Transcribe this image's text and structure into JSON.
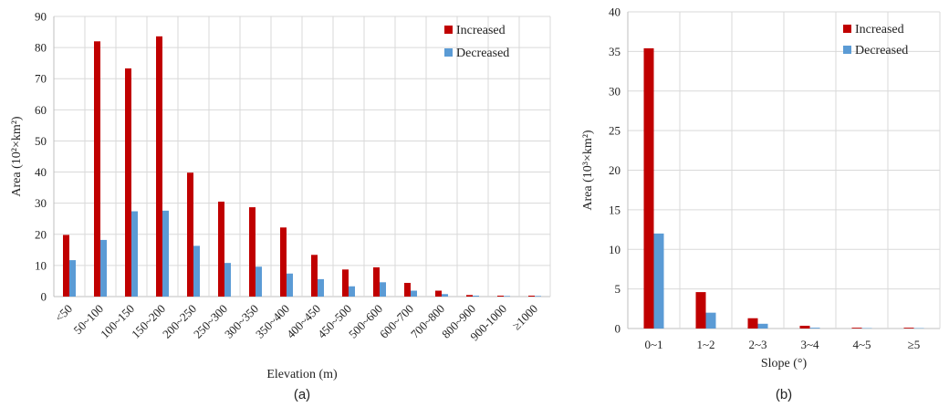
{
  "colors": {
    "increased": "#c00000",
    "decreased": "#5b9bd5"
  },
  "chart_data": [
    {
      "type": "bar",
      "panel_label": "(a)",
      "xlabel": "Elevation (m)",
      "ylabel": "Area (10²×km²)",
      "ylim": [
        0,
        90
      ],
      "yticks": [
        0,
        10,
        20,
        30,
        40,
        50,
        60,
        70,
        80,
        90
      ],
      "categories": [
        "<50",
        "50~100",
        "100~150",
        "150~200",
        "200~250",
        "250~300",
        "300~350",
        "350~400",
        "400~450",
        "450~500",
        "500~600",
        "600~700",
        "700~800",
        "800~900",
        "900-1000",
        "≥1000"
      ],
      "series": [
        {
          "name": "Increased",
          "values": [
            19.8,
            82.0,
            73.3,
            83.6,
            39.8,
            30.5,
            28.7,
            22.2,
            13.4,
            8.7,
            9.4,
            4.4,
            1.9,
            0.5,
            0.3,
            0.3
          ]
        },
        {
          "name": "Decreased",
          "values": [
            11.7,
            18.2,
            27.4,
            27.6,
            16.3,
            10.8,
            9.6,
            7.4,
            5.6,
            3.3,
            4.6,
            1.9,
            0.8,
            0.3,
            0.2,
            0.2
          ]
        }
      ],
      "grid": true,
      "legend": "top-right"
    },
    {
      "type": "bar",
      "panel_label": "(b)",
      "xlabel": "Slope (°)",
      "ylabel": "Area (10³×km²)",
      "ylim": [
        0,
        40
      ],
      "yticks": [
        0,
        5,
        10,
        15,
        20,
        25,
        30,
        35,
        40
      ],
      "categories": [
        "0~1",
        "1~2",
        "2~3",
        "3~4",
        "4~5",
        "≥5"
      ],
      "series": [
        {
          "name": "Increased",
          "values": [
            35.4,
            4.6,
            1.3,
            0.35,
            0.1,
            0.1
          ]
        },
        {
          "name": "Decreased",
          "values": [
            12.0,
            2.0,
            0.6,
            0.1,
            0.05,
            0.05
          ]
        }
      ],
      "grid": true,
      "legend": "top-right"
    }
  ]
}
